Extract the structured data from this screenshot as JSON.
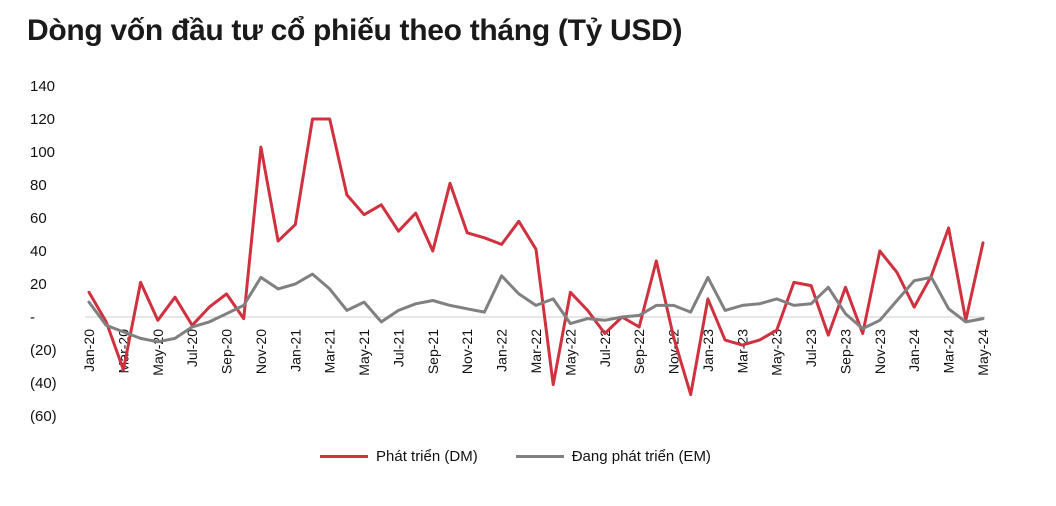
{
  "title": "Dòng vốn đầu tư cổ phiếu theo tháng (Tỷ USD)",
  "chart_data": {
    "type": "line",
    "title": "Dòng vốn đầu tư cổ phiếu theo tháng (Tỷ USD)",
    "xlabel": "",
    "ylabel": "",
    "ylim": [
      -60,
      140
    ],
    "y_ticks": [
      140,
      120,
      100,
      80,
      60,
      40,
      20,
      0,
      -20,
      -40,
      -60
    ],
    "y_tick_labels": [
      "140",
      "120",
      "100",
      "80",
      "60",
      "40",
      "20",
      "-",
      "(20)",
      "(40)",
      "(60)"
    ],
    "grid": false,
    "legend_position": "bottom-center",
    "x": [
      "Jan-20",
      "Feb-20",
      "Mar-20",
      "Apr-20",
      "May-20",
      "Jun-20",
      "Jul-20",
      "Aug-20",
      "Sep-20",
      "Oct-20",
      "Nov-20",
      "Dec-20",
      "Jan-21",
      "Feb-21",
      "Mar-21",
      "Apr-21",
      "May-21",
      "Jun-21",
      "Jul-21",
      "Aug-21",
      "Sep-21",
      "Oct-21",
      "Nov-21",
      "Dec-21",
      "Jan-22",
      "Feb-22",
      "Mar-22",
      "Apr-22",
      "May-22",
      "Jun-22",
      "Jul-22",
      "Aug-22",
      "Sep-22",
      "Oct-22",
      "Nov-22",
      "Dec-22",
      "Jan-23",
      "Feb-23",
      "Mar-23",
      "Apr-23",
      "May-23",
      "Jun-23",
      "Jul-23",
      "Aug-23",
      "Sep-23",
      "Oct-23",
      "Nov-23",
      "Dec-23",
      "Jan-24",
      "Feb-24",
      "Mar-24",
      "Apr-24",
      "May-24"
    ],
    "x_tick_labels": [
      "Jan-20",
      "Mar-20",
      "May-20",
      "Jul-20",
      "Sep-20",
      "Nov-20",
      "Jan-21",
      "Mar-21",
      "May-21",
      "Jul-21",
      "Sep-21",
      "Nov-21",
      "Jan-22",
      "Mar-22",
      "May-22",
      "Jul-22",
      "Sep-22",
      "Nov-22",
      "Jan-23",
      "Mar-23",
      "May-23",
      "Jul-23",
      "Sep-23",
      "Nov-23",
      "Jan-24",
      "Mar-24",
      "May-24"
    ],
    "series": [
      {
        "name": "Phát triển (DM)",
        "color": "#d0313f",
        "values": [
          15,
          -3,
          -32,
          21,
          -2,
          12,
          -5,
          6,
          14,
          -1,
          103,
          46,
          56,
          120,
          120,
          74,
          62,
          68,
          52,
          63,
          40,
          81,
          51,
          48,
          44,
          58,
          41,
          -41,
          15,
          4,
          -10,
          0,
          -6,
          34,
          -12,
          -47,
          11,
          -14,
          -17,
          -14,
          -8,
          21,
          19,
          -11,
          18,
          -10,
          40,
          27,
          6,
          25,
          54,
          -2,
          45
        ]
      },
      {
        "name": "Đang phát triển (EM)",
        "color": "#808080",
        "values": [
          9,
          -5,
          -9,
          -13,
          -15,
          -13,
          -6,
          -3,
          2,
          7,
          24,
          17,
          20,
          26,
          17,
          4,
          9,
          -3,
          4,
          8,
          10,
          7,
          5,
          3,
          25,
          14,
          7,
          11,
          -4,
          -1,
          -2,
          0,
          1,
          7,
          7,
          3,
          24,
          4,
          7,
          8,
          11,
          7,
          8,
          18,
          2,
          -7,
          -2,
          10,
          22,
          24,
          5,
          -3,
          -1
        ]
      }
    ]
  }
}
